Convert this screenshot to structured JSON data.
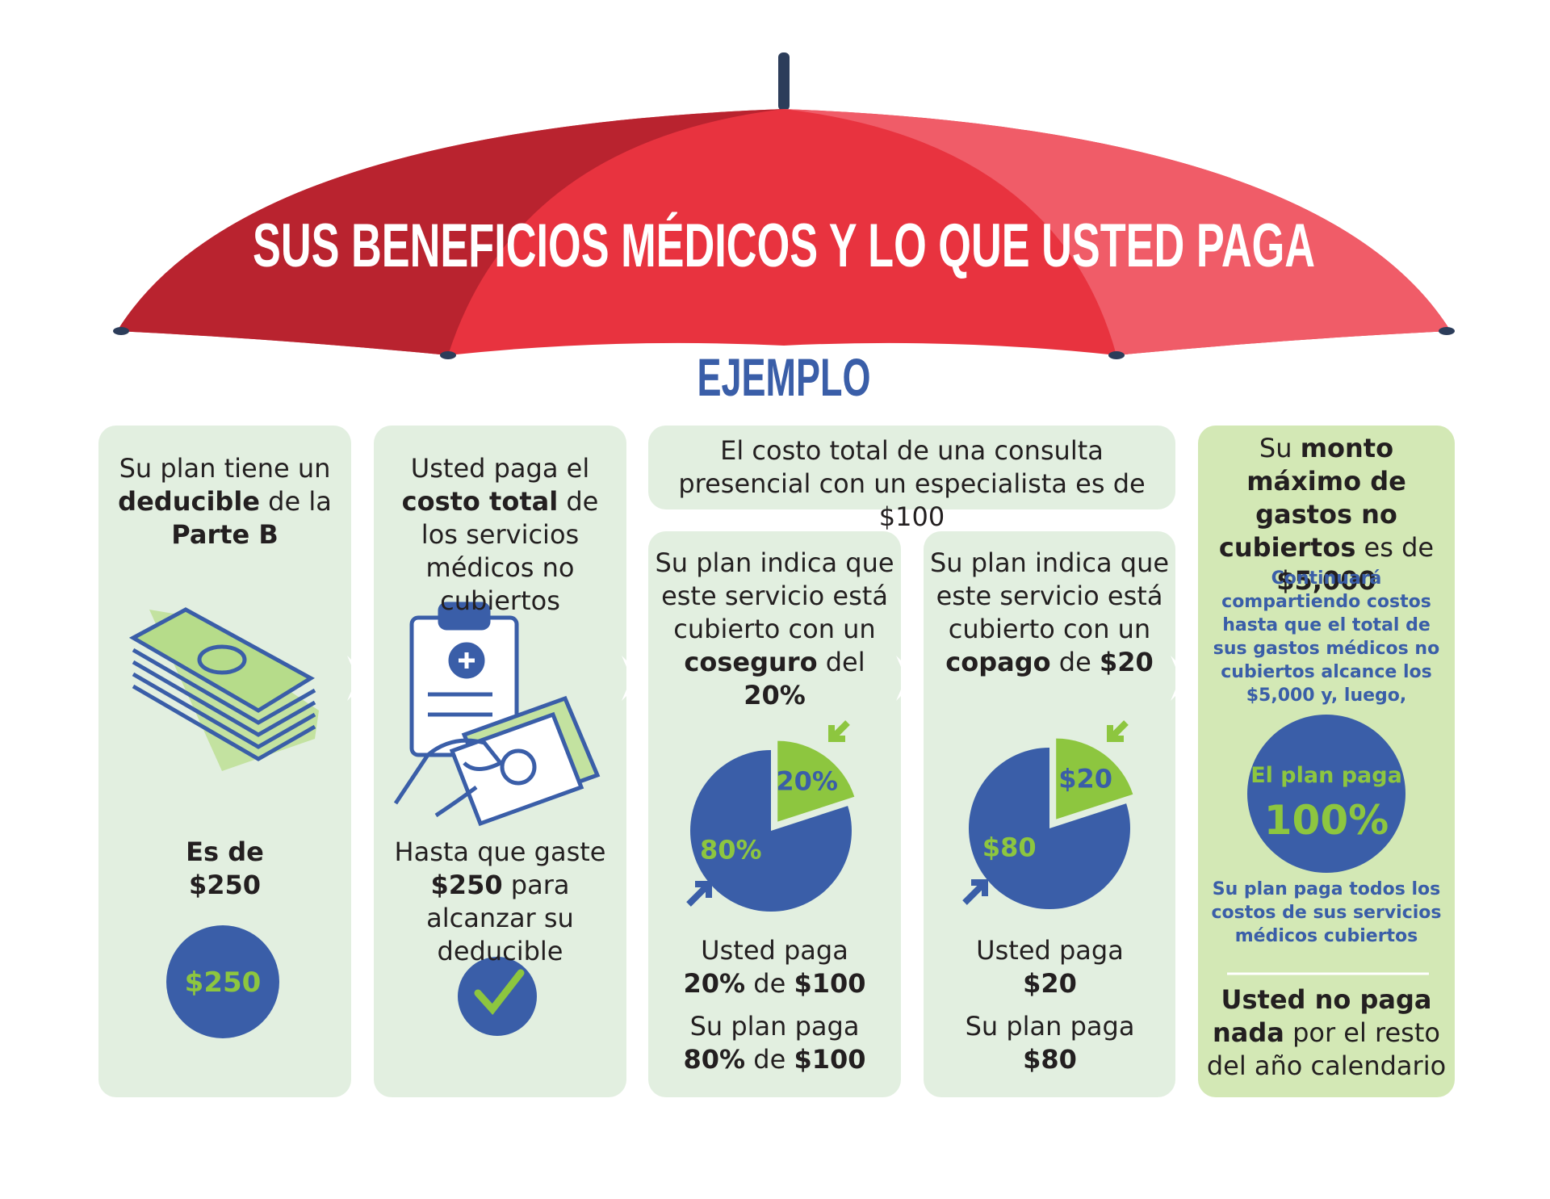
{
  "header": {
    "title": "SUS BENEFICIOS MÉDICOS Y LO QUE USTED PAGA",
    "subtitle": "EJEMPLO"
  },
  "consult_box": [
    {
      "text": "El costo total de una consulta presencial con un especialista es de $100",
      "bold": false
    }
  ],
  "panels": [
    {
      "intro": [
        {
          "text": "Su plan tiene un ",
          "bold": false
        },
        {
          "text": "deducible",
          "bold": true
        },
        {
          "text": " de la ",
          "bold": false
        },
        {
          "text": "Parte B",
          "bold": true
        }
      ],
      "amount_label": [
        {
          "text": "Es de",
          "bold": true
        }
      ],
      "amount": [
        {
          "text": "$250",
          "bold": true
        }
      ],
      "circle_label": "$250"
    },
    {
      "intro": [
        {
          "text": "Usted paga el ",
          "bold": false
        },
        {
          "text": "costo total",
          "bold": true
        },
        {
          "text": " de los servicios médicos no cubiertos",
          "bold": false
        }
      ],
      "bottom": [
        {
          "text": "Hasta que gaste ",
          "bold": false
        },
        {
          "text": "$250",
          "bold": true
        },
        {
          "text": " para alcanzar su deducible",
          "bold": false
        }
      ]
    },
    {
      "intro": [
        {
          "text": "Su plan indica que este servicio está cubierto con un ",
          "bold": false
        },
        {
          "text": "coseguro",
          "bold": true
        },
        {
          "text": " del ",
          "bold": false
        },
        {
          "text": "20%",
          "bold": true
        }
      ],
      "pie": {
        "values": [
          20,
          80
        ],
        "value_labels": [
          "20%",
          "80%"
        ]
      },
      "you_pay_label": [
        {
          "text": "Usted paga",
          "bold": false
        }
      ],
      "you_pay": [
        {
          "text": "20%",
          "bold": true
        },
        {
          "text": " de ",
          "bold": false
        },
        {
          "text": "$100",
          "bold": true
        }
      ],
      "plan_pays_label": [
        {
          "text": "Su plan paga",
          "bold": false
        }
      ],
      "plan_pays": [
        {
          "text": "80%",
          "bold": true
        },
        {
          "text": " de ",
          "bold": false
        },
        {
          "text": "$100",
          "bold": true
        }
      ]
    },
    {
      "intro": [
        {
          "text": "Su plan indica que este servicio está cubierto con un ",
          "bold": false
        },
        {
          "text": "copago",
          "bold": true
        },
        {
          "text": " de ",
          "bold": false
        },
        {
          "text": "$20",
          "bold": true
        }
      ],
      "pie": {
        "values": [
          20,
          80
        ],
        "value_labels": [
          "$20",
          "$80"
        ]
      },
      "you_pay_label": [
        {
          "text": "Usted paga",
          "bold": false
        }
      ],
      "you_pay": [
        {
          "text": "$20",
          "bold": true
        }
      ],
      "plan_pays_label": [
        {
          "text": "Su plan paga",
          "bold": false
        }
      ],
      "plan_pays": [
        {
          "text": "$80",
          "bold": true
        }
      ]
    },
    {
      "intro": [
        {
          "text": "Su ",
          "bold": false
        },
        {
          "text": "monto máximo de gastos no cubiertos",
          "bold": true
        },
        {
          "text": " es de ",
          "bold": false
        },
        {
          "text": "$5,000",
          "bold": true
        }
      ],
      "note": "Continuará compartiendo costos hasta que el total de sus gastos médicos no cubiertos alcance los $5,000 y, luego,",
      "circle_label": "El plan paga",
      "circle_value": "100%",
      "note2": "Su plan paga todos los costos de sus servicios médicos cubiertos",
      "final": [
        {
          "text": "Usted no paga nada",
          "bold": true
        },
        {
          "text": " por el resto del año calendario",
          "bold": false
        }
      ]
    }
  ]
}
